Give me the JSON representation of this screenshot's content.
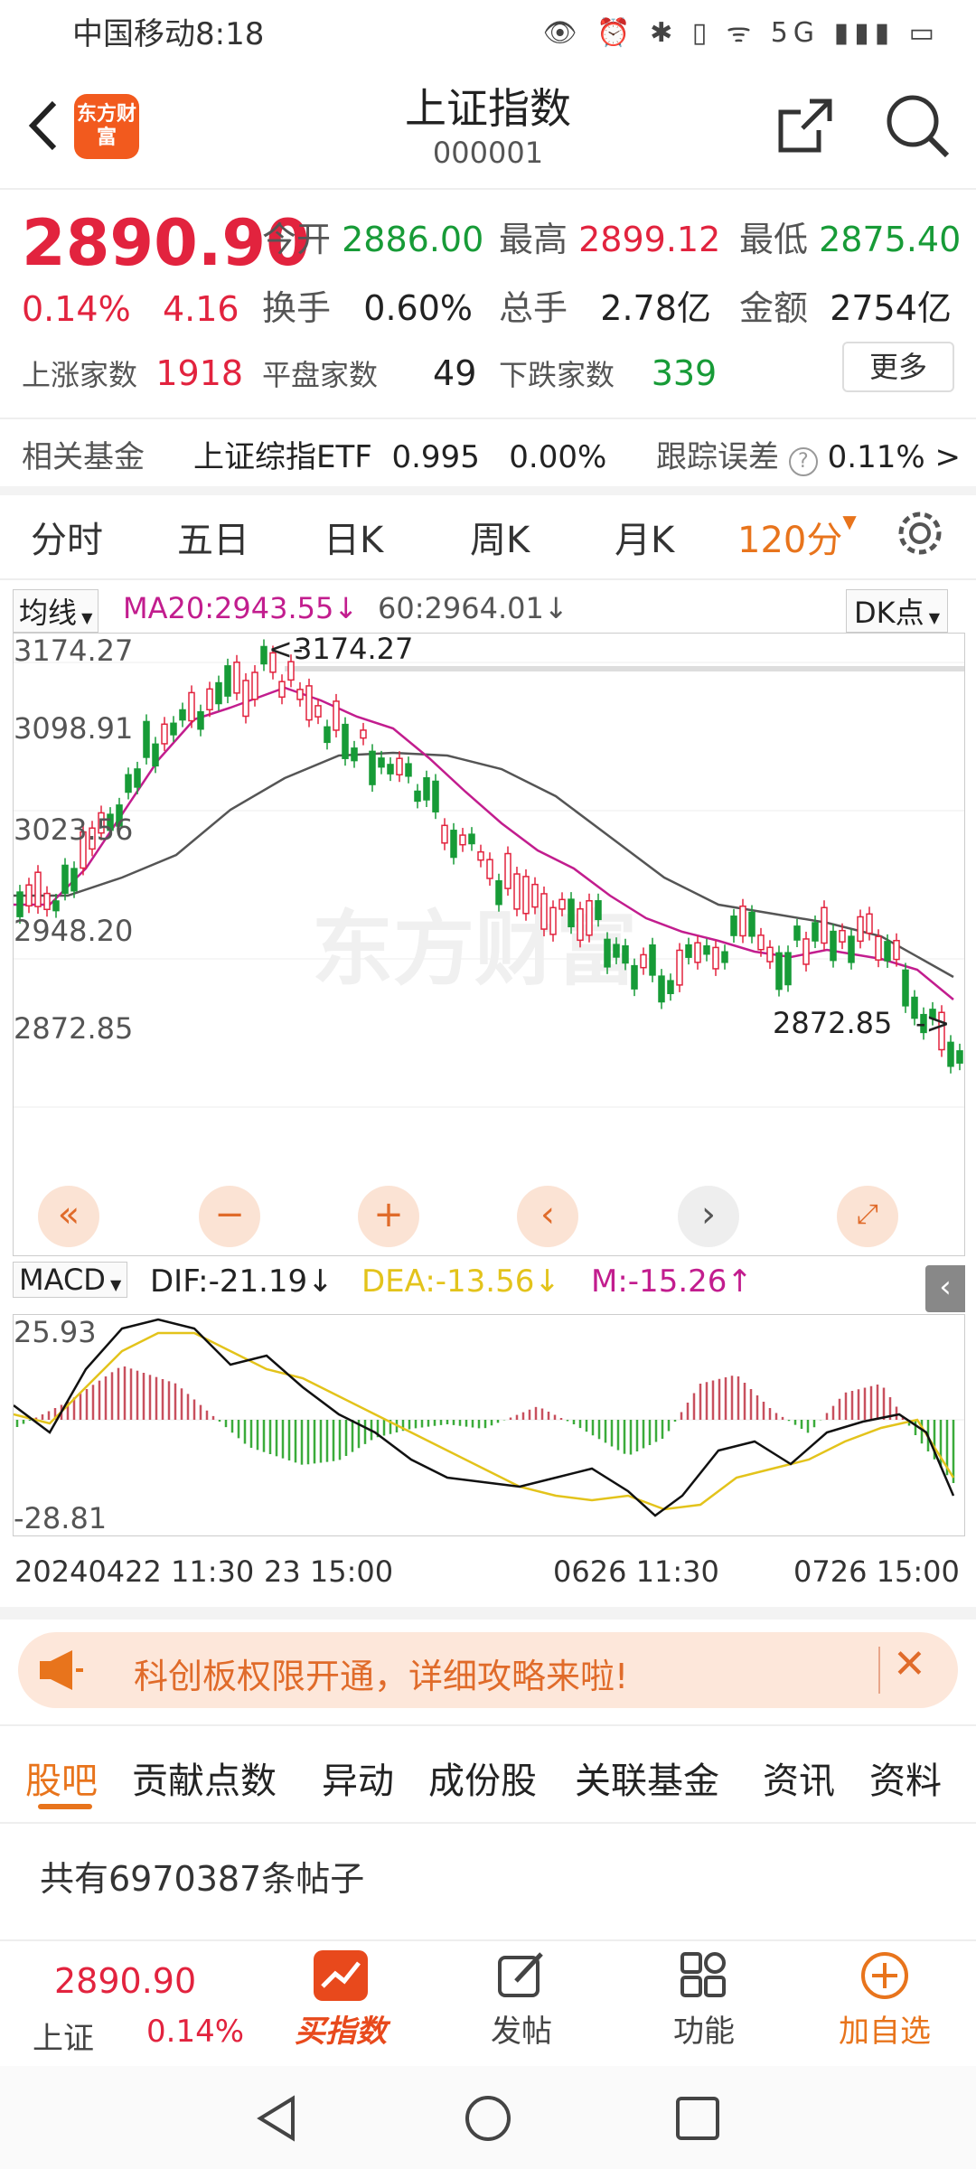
{
  "status_bar": {
    "carrier": "中国移动",
    "time": "8:18",
    "icons": "👁 ⏰ ✱ ▯ ᯤ 5G ▮▮▮ ▭"
  },
  "header": {
    "title": "上证指数",
    "code": "000001",
    "logo_text": "东方财富"
  },
  "quote": {
    "price": "2890.90",
    "pct": "0.14%",
    "change": "4.16",
    "open_label": "今开",
    "open": "2886.00",
    "high_label": "最高",
    "high": "2899.12",
    "low_label": "最低",
    "low": "2875.40",
    "turnover_label": "换手",
    "turnover": "0.60%",
    "volume_label": "总手",
    "volume": "2.78亿",
    "amount_label": "金额",
    "amount": "2754亿",
    "up_label": "上涨家数",
    "up": "1918",
    "flat_label": "平盘家数",
    "flat": "49",
    "down_label": "下跌家数",
    "down": "339",
    "more": "更多"
  },
  "fund_row": {
    "label": "相关基金",
    "name": "上证综指ETF",
    "price": "0.995",
    "pct": "0.00%",
    "track_label": "跟踪误差",
    "track": "0.11%"
  },
  "period_tabs": [
    "分时",
    "五日",
    "日K",
    "周K",
    "月K",
    "120分"
  ],
  "active_period": "120分",
  "indicator": {
    "ma_select": "均线",
    "ma20": "MA20:2943.55",
    "ma60": "60:2964.01",
    "dk": "DK点",
    "max_marker": "3174.27",
    "min_marker": "2872.85",
    "y_ticks": [
      "3174.27",
      "3098.91",
      "3023.56",
      "2948.20",
      "2872.85"
    ]
  },
  "macd": {
    "select": "MACD",
    "dif": "DIF:-21.19",
    "dea": "DEA:-13.56",
    "m": "M:-15.26",
    "top": "25.93",
    "bottom": "-28.81"
  },
  "x_axis": {
    "left": "20240422 11:30",
    "left2": "23 15:00",
    "mid": "0626 11:30",
    "right": "0726 15:00"
  },
  "banner": {
    "text": "科创板权限开通，详细攻略来啦!"
  },
  "content_tabs": [
    "股吧",
    "贡献点数",
    "异动",
    "成份股",
    "关联基金",
    "资讯",
    "资料"
  ],
  "post_count": "共有6970387条帖子",
  "bottom": {
    "price": "2890.90",
    "name": "上证",
    "pct": "0.14%",
    "buy": "买指数",
    "post": "发帖",
    "func": "功能",
    "add": "加自选"
  },
  "colors": {
    "up": "#e2233e",
    "down": "#179b37",
    "accent": "#e8741c",
    "ma20": "#c21d8e",
    "ma60": "#555555",
    "dea": "#e3c31b"
  }
}
